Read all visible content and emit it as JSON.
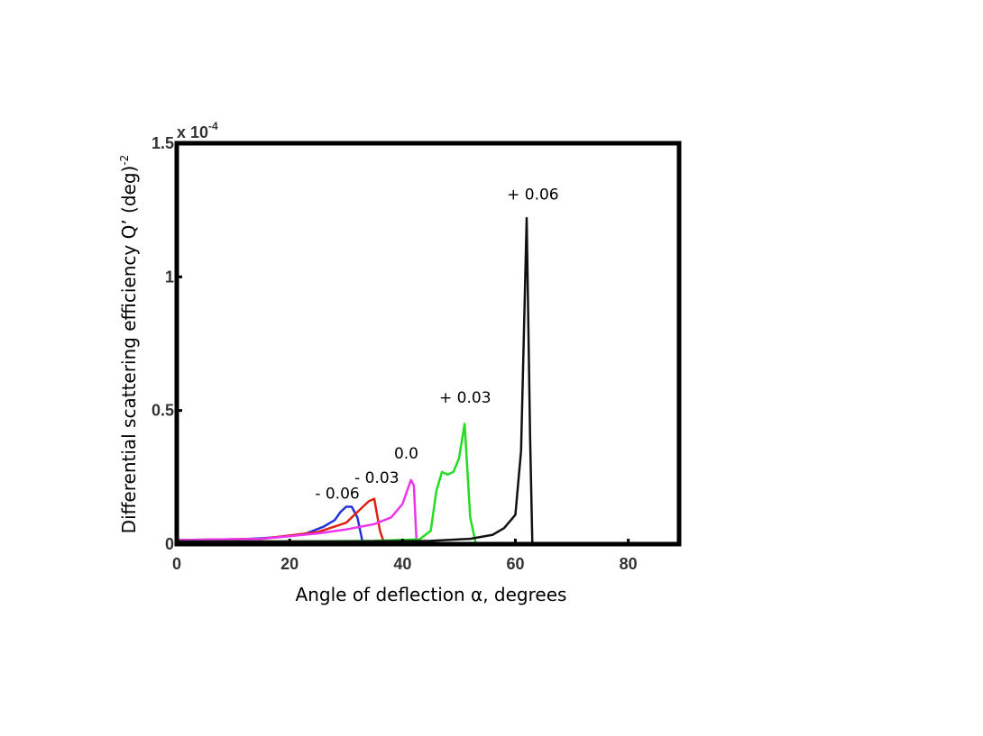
{
  "chart_data": {
    "type": "line",
    "title": "",
    "xlabel": "Angle of deflection α,  degrees",
    "ylabel": "Differential scattering efficiency Q’ (deg)",
    "ylabel_superscript": "-2",
    "y_multiplier_base": "x 10",
    "y_multiplier_exponent": "-4",
    "xlim": [
      0,
      89
    ],
    "ylim": [
      0,
      1.5
    ],
    "x_ticks": [
      0,
      20,
      40,
      60,
      80
    ],
    "y_ticks": [
      0,
      0.5,
      1,
      1.5
    ],
    "x_tick_labels": [
      "0",
      "20",
      "40",
      "60",
      "80"
    ],
    "y_tick_labels": [
      "0",
      "0.5",
      "1",
      "1.5"
    ],
    "series": [
      {
        "name": "- 0.06",
        "color": "#2233dd",
        "points": [
          [
            0,
            0.015
          ],
          [
            10,
            0.017
          ],
          [
            15,
            0.022
          ],
          [
            20,
            0.03
          ],
          [
            23,
            0.04
          ],
          [
            26,
            0.065
          ],
          [
            28,
            0.09
          ],
          [
            29,
            0.12
          ],
          [
            30,
            0.14
          ],
          [
            31,
            0.14
          ],
          [
            32,
            0.1
          ],
          [
            33,
            0.0
          ],
          [
            37,
            0.0
          ]
        ],
        "label_at": [
          24.5,
          0.17
        ]
      },
      {
        "name": "- 0.03",
        "color": "#dd2211",
        "points": [
          [
            0,
            0.015
          ],
          [
            15,
            0.02
          ],
          [
            25,
            0.045
          ],
          [
            30,
            0.08
          ],
          [
            32,
            0.12
          ],
          [
            34,
            0.16
          ],
          [
            35,
            0.17
          ],
          [
            36,
            0.05
          ],
          [
            36.8,
            0.0
          ],
          [
            40,
            0.0
          ]
        ],
        "label_at": [
          31.5,
          0.23
        ]
      },
      {
        "name": "0.0",
        "color": "#ee33ee",
        "points": [
          [
            0,
            0.015
          ],
          [
            15,
            0.02
          ],
          [
            25,
            0.04
          ],
          [
            30,
            0.055
          ],
          [
            35,
            0.075
          ],
          [
            38,
            0.1
          ],
          [
            40,
            0.15
          ],
          [
            41.5,
            0.24
          ],
          [
            42,
            0.22
          ],
          [
            42.5,
            0.0
          ],
          [
            46,
            0.0
          ]
        ],
        "label_at": [
          38.5,
          0.32
        ]
      },
      {
        "name": "+ 0.03",
        "color": "#22dd22",
        "points": [
          [
            0,
            0.01
          ],
          [
            20,
            0.01
          ],
          [
            35,
            0.012
          ],
          [
            43,
            0.018
          ],
          [
            45,
            0.05
          ],
          [
            46,
            0.2
          ],
          [
            47,
            0.27
          ],
          [
            48,
            0.26
          ],
          [
            49,
            0.27
          ],
          [
            50,
            0.32
          ],
          [
            51,
            0.45
          ],
          [
            52,
            0.1
          ],
          [
            53,
            0.0
          ],
          [
            62,
            0.0
          ]
        ],
        "label_at": [
          46.5,
          0.53
        ]
      },
      {
        "name": "+ 0.06",
        "color": "#111111",
        "points": [
          [
            0,
            0.01
          ],
          [
            30,
            0.01
          ],
          [
            45,
            0.012
          ],
          [
            52,
            0.02
          ],
          [
            56,
            0.035
          ],
          [
            58,
            0.06
          ],
          [
            60,
            0.11
          ],
          [
            61,
            0.35
          ],
          [
            62,
            1.22
          ],
          [
            62.6,
            0.4
          ],
          [
            63,
            0.0
          ]
        ],
        "label_at": [
          58.5,
          1.29
        ]
      }
    ]
  }
}
